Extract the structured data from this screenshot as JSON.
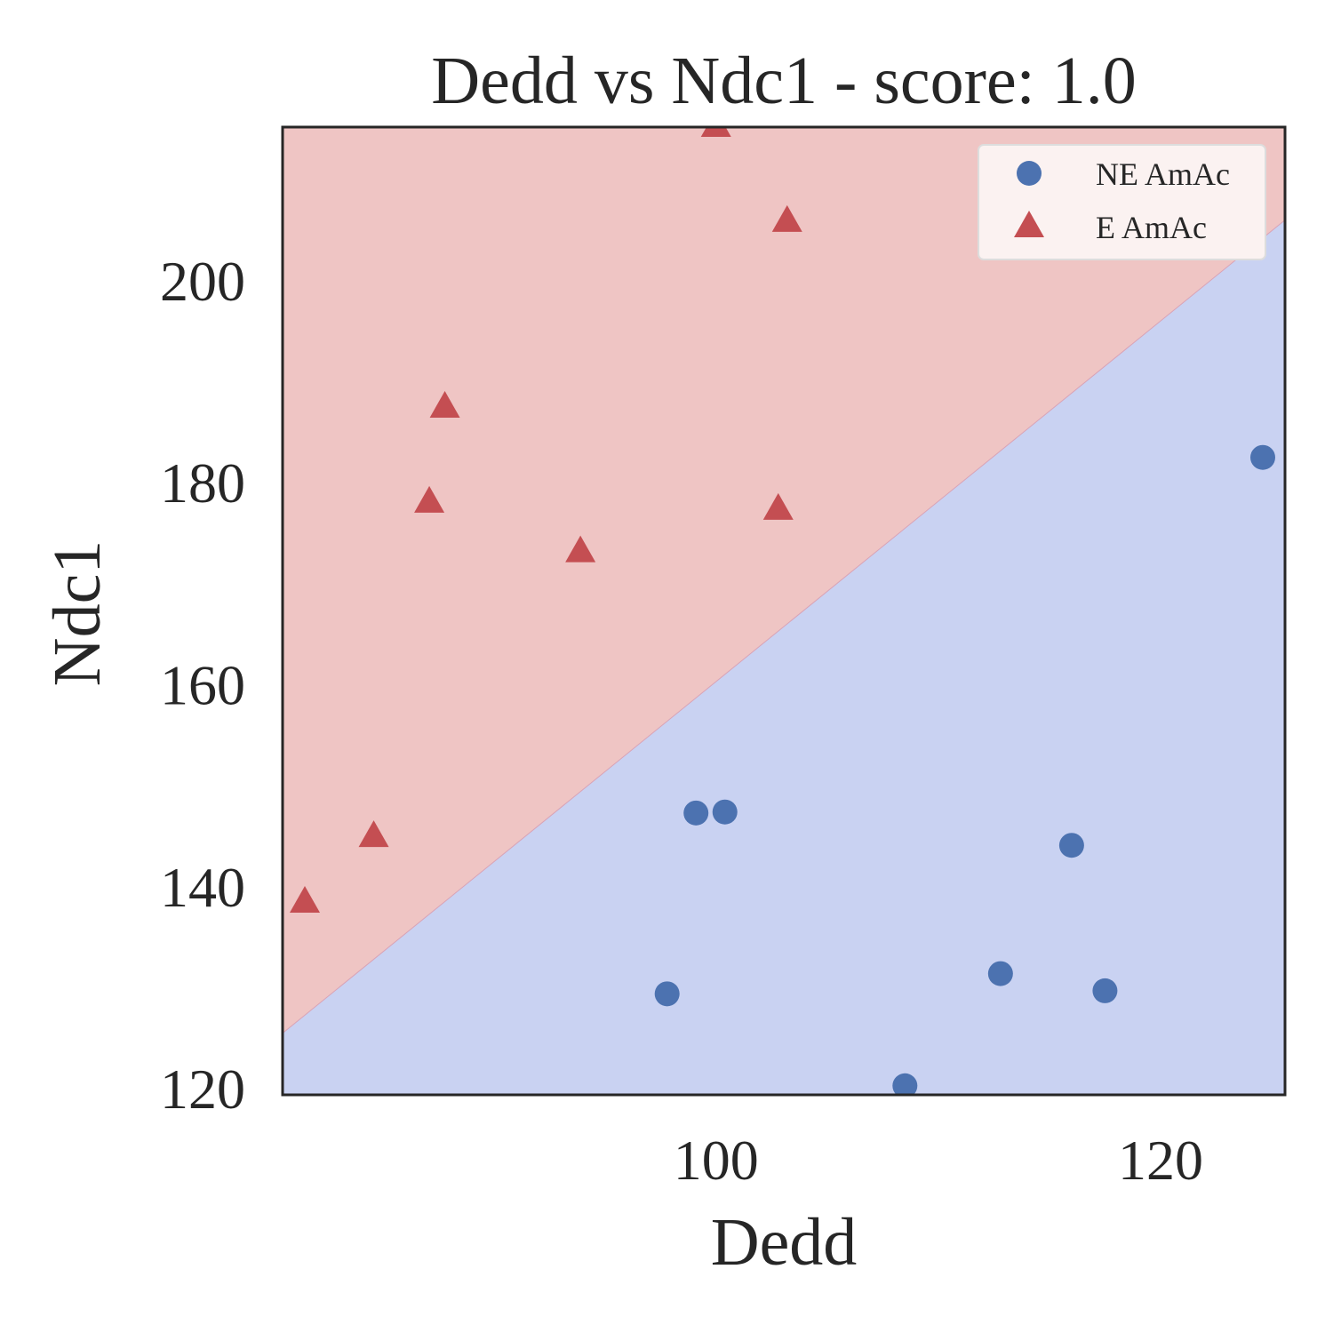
{
  "chart_data": {
    "type": "scatter",
    "title": "Dedd vs Ndc1 - score: 1.0",
    "xlabel": "Dedd",
    "ylabel": "Ndc1",
    "xlim": [
      80.5,
      125.6
    ],
    "ylim": [
      119.4,
      215.2
    ],
    "x_ticks": [
      100,
      120
    ],
    "y_ticks": [
      120,
      140,
      160,
      180,
      200
    ],
    "grid": false,
    "legend_position": "top-right",
    "decision_boundary": {
      "x": [
        80.5,
        125.6
      ],
      "y": [
        125.5,
        206.0
      ]
    },
    "regions": [
      {
        "class": "E AmAc",
        "side": "above",
        "color": "#efc5c4"
      },
      {
        "class": "NE AmAc",
        "side": "below",
        "color": "#c9d2f2"
      }
    ],
    "series": [
      {
        "name": "NE AmAc",
        "marker": "circle",
        "color": "#4c72b0",
        "points": [
          [
            97.8,
            129.4
          ],
          [
            99.1,
            147.3
          ],
          [
            100.4,
            147.4
          ],
          [
            108.5,
            120.3
          ],
          [
            112.8,
            131.4
          ],
          [
            116.0,
            144.1
          ],
          [
            117.5,
            129.7
          ],
          [
            124.6,
            182.5
          ]
        ]
      },
      {
        "name": "E AmAc",
        "marker": "triangle",
        "color": "#c44e52",
        "points": [
          [
            81.5,
            138.4
          ],
          [
            84.6,
            144.9
          ],
          [
            87.1,
            178.0
          ],
          [
            87.8,
            187.4
          ],
          [
            93.9,
            173.1
          ],
          [
            100.0,
            215.2
          ],
          [
            102.8,
            177.3
          ],
          [
            103.2,
            205.8
          ]
        ]
      }
    ]
  }
}
